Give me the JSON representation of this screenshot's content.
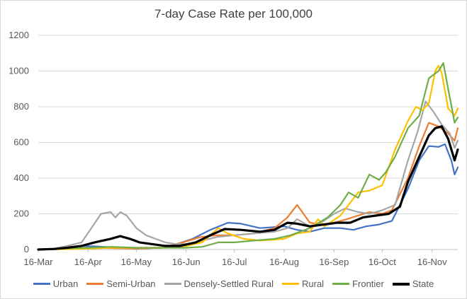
{
  "chart_data": {
    "type": "line",
    "title": "7-day Case Rate per 100,000",
    "xlabel": "",
    "ylabel": "",
    "ylim": [
      0,
      1200
    ],
    "yticks": [
      "0",
      "200",
      "400",
      "600",
      "800",
      "1000",
      "1200"
    ],
    "xlim": [
      "2020-03-16",
      "2020-12-02"
    ],
    "xticks": [
      "16-Mar",
      "16-Apr",
      "16-May",
      "16-Jun",
      "16-Jul",
      "16-Aug",
      "16-Sep",
      "16-Oct",
      "16-Nov"
    ],
    "xtick_dates": [
      "2020-03-16",
      "2020-04-16",
      "2020-05-16",
      "2020-06-16",
      "2020-07-16",
      "2020-08-16",
      "2020-09-16",
      "2020-10-16",
      "2020-11-16"
    ],
    "grid": "horizontal",
    "legend_position": "bottom",
    "series": [
      {
        "name": "Urban",
        "color": "#4472c4",
        "points": [
          [
            "2020-03-16",
            0
          ],
          [
            "2020-03-26",
            2
          ],
          [
            "2020-04-01",
            10
          ],
          [
            "2020-04-10",
            20
          ],
          [
            "2020-04-20",
            18
          ],
          [
            "2020-05-01",
            12
          ],
          [
            "2020-05-16",
            5
          ],
          [
            "2020-06-01",
            10
          ],
          [
            "2020-06-10",
            30
          ],
          [
            "2020-06-20",
            60
          ],
          [
            "2020-07-01",
            110
          ],
          [
            "2020-07-12",
            150
          ],
          [
            "2020-07-20",
            145
          ],
          [
            "2020-08-01",
            120
          ],
          [
            "2020-08-16",
            130
          ],
          [
            "2020-08-24",
            110
          ],
          [
            "2020-09-01",
            100
          ],
          [
            "2020-09-10",
            120
          ],
          [
            "2020-09-20",
            120
          ],
          [
            "2020-09-28",
            110
          ],
          [
            "2020-10-06",
            130
          ],
          [
            "2020-10-14",
            140
          ],
          [
            "2020-10-22",
            160
          ],
          [
            "2020-11-01",
            340
          ],
          [
            "2020-11-08",
            500
          ],
          [
            "2020-11-14",
            580
          ],
          [
            "2020-11-20",
            575
          ],
          [
            "2020-11-24",
            590
          ],
          [
            "2020-11-28",
            500
          ],
          [
            "2020-11-30",
            420
          ],
          [
            "2020-12-02",
            460
          ]
        ]
      },
      {
        "name": "Semi-Urban",
        "color": "#ed7d31",
        "points": [
          [
            "2020-03-16",
            0
          ],
          [
            "2020-03-26",
            1
          ],
          [
            "2020-04-01",
            5
          ],
          [
            "2020-04-10",
            8
          ],
          [
            "2020-04-20",
            10
          ],
          [
            "2020-05-01",
            8
          ],
          [
            "2020-05-16",
            5
          ],
          [
            "2020-06-01",
            10
          ],
          [
            "2020-06-14",
            40
          ],
          [
            "2020-06-25",
            70
          ],
          [
            "2020-07-05",
            80
          ],
          [
            "2020-07-16",
            80
          ],
          [
            "2020-07-28",
            90
          ],
          [
            "2020-08-10",
            120
          ],
          [
            "2020-08-18",
            180
          ],
          [
            "2020-08-24",
            250
          ],
          [
            "2020-08-28",
            200
          ],
          [
            "2020-09-01",
            150
          ],
          [
            "2020-09-08",
            140
          ],
          [
            "2020-09-16",
            150
          ],
          [
            "2020-09-24",
            170
          ],
          [
            "2020-10-01",
            190
          ],
          [
            "2020-10-08",
            210
          ],
          [
            "2020-10-16",
            200
          ],
          [
            "2020-10-22",
            220
          ],
          [
            "2020-11-01",
            400
          ],
          [
            "2020-11-08",
            580
          ],
          [
            "2020-11-14",
            710
          ],
          [
            "2020-11-20",
            690
          ],
          [
            "2020-11-26",
            650
          ],
          [
            "2020-11-30",
            610
          ],
          [
            "2020-12-02",
            680
          ]
        ]
      },
      {
        "name": "Densely-Settled Rural",
        "color": "#a5a5a5",
        "points": [
          [
            "2020-03-16",
            0
          ],
          [
            "2020-03-26",
            5
          ],
          [
            "2020-04-03",
            20
          ],
          [
            "2020-04-12",
            40
          ],
          [
            "2020-04-18",
            120
          ],
          [
            "2020-04-24",
            200
          ],
          [
            "2020-04-30",
            210
          ],
          [
            "2020-05-03",
            180
          ],
          [
            "2020-05-06",
            210
          ],
          [
            "2020-05-10",
            190
          ],
          [
            "2020-05-16",
            120
          ],
          [
            "2020-05-22",
            80
          ],
          [
            "2020-05-28",
            60
          ],
          [
            "2020-06-03",
            40
          ],
          [
            "2020-06-10",
            30
          ],
          [
            "2020-06-18",
            30
          ],
          [
            "2020-06-26",
            50
          ],
          [
            "2020-07-05",
            70
          ],
          [
            "2020-07-16",
            80
          ],
          [
            "2020-07-28",
            90
          ],
          [
            "2020-08-10",
            100
          ],
          [
            "2020-08-18",
            120
          ],
          [
            "2020-08-24",
            170
          ],
          [
            "2020-09-01",
            130
          ],
          [
            "2020-09-08",
            150
          ],
          [
            "2020-09-16",
            200
          ],
          [
            "2020-09-23",
            230
          ],
          [
            "2020-10-01",
            210
          ],
          [
            "2020-10-08",
            200
          ],
          [
            "2020-10-16",
            220
          ],
          [
            "2020-10-24",
            250
          ],
          [
            "2020-11-01",
            500
          ],
          [
            "2020-11-07",
            660
          ],
          [
            "2020-11-12",
            830
          ],
          [
            "2020-11-17",
            770
          ],
          [
            "2020-11-22",
            700
          ],
          [
            "2020-11-27",
            650
          ],
          [
            "2020-11-30",
            570
          ],
          [
            "2020-12-02",
            610
          ]
        ]
      },
      {
        "name": "Rural",
        "color": "#ffc000",
        "points": [
          [
            "2020-03-16",
            0
          ],
          [
            "2020-04-01",
            2
          ],
          [
            "2020-04-16",
            5
          ],
          [
            "2020-05-01",
            10
          ],
          [
            "2020-05-16",
            10
          ],
          [
            "2020-06-01",
            10
          ],
          [
            "2020-06-16",
            20
          ],
          [
            "2020-06-26",
            40
          ],
          [
            "2020-07-06",
            120
          ],
          [
            "2020-07-12",
            90
          ],
          [
            "2020-07-22",
            60
          ],
          [
            "2020-08-01",
            50
          ],
          [
            "2020-08-16",
            60
          ],
          [
            "2020-08-24",
            90
          ],
          [
            "2020-09-01",
            100
          ],
          [
            "2020-09-06",
            170
          ],
          [
            "2020-09-10",
            130
          ],
          [
            "2020-09-20",
            190
          ],
          [
            "2020-10-01",
            320
          ],
          [
            "2020-10-08",
            330
          ],
          [
            "2020-10-16",
            360
          ],
          [
            "2020-10-24",
            560
          ],
          [
            "2020-11-01",
            720
          ],
          [
            "2020-11-06",
            800
          ],
          [
            "2020-11-10",
            780
          ],
          [
            "2020-11-14",
            820
          ],
          [
            "2020-11-18",
            1000
          ],
          [
            "2020-11-20",
            1030
          ],
          [
            "2020-11-22",
            990
          ],
          [
            "2020-11-26",
            790
          ],
          [
            "2020-11-30",
            750
          ],
          [
            "2020-12-02",
            790
          ]
        ]
      },
      {
        "name": "Frontier",
        "color": "#70ad47",
        "points": [
          [
            "2020-03-16",
            0
          ],
          [
            "2020-04-01",
            5
          ],
          [
            "2020-04-16",
            10
          ],
          [
            "2020-05-01",
            15
          ],
          [
            "2020-05-16",
            10
          ],
          [
            "2020-06-01",
            10
          ],
          [
            "2020-06-16",
            10
          ],
          [
            "2020-06-26",
            15
          ],
          [
            "2020-07-06",
            40
          ],
          [
            "2020-07-16",
            40
          ],
          [
            "2020-07-28",
            50
          ],
          [
            "2020-08-10",
            60
          ],
          [
            "2020-08-20",
            80
          ],
          [
            "2020-09-01",
            120
          ],
          [
            "2020-09-12",
            180
          ],
          [
            "2020-09-20",
            250
          ],
          [
            "2020-09-25",
            320
          ],
          [
            "2020-10-01",
            290
          ],
          [
            "2020-10-08",
            420
          ],
          [
            "2020-10-14",
            390
          ],
          [
            "2020-10-18",
            430
          ],
          [
            "2020-10-24",
            520
          ],
          [
            "2020-11-01",
            680
          ],
          [
            "2020-11-08",
            750
          ],
          [
            "2020-11-14",
            960
          ],
          [
            "2020-11-20",
            1000
          ],
          [
            "2020-11-23",
            1045
          ],
          [
            "2020-11-26",
            900
          ],
          [
            "2020-11-29",
            760
          ],
          [
            "2020-11-30",
            710
          ],
          [
            "2020-12-02",
            740
          ]
        ]
      },
      {
        "name": "State",
        "color": "#000000",
        "points": [
          [
            "2020-03-16",
            0
          ],
          [
            "2020-03-26",
            3
          ],
          [
            "2020-04-03",
            10
          ],
          [
            "2020-04-12",
            20
          ],
          [
            "2020-04-20",
            40
          ],
          [
            "2020-04-30",
            60
          ],
          [
            "2020-05-06",
            75
          ],
          [
            "2020-05-12",
            60
          ],
          [
            "2020-05-18",
            40
          ],
          [
            "2020-05-26",
            30
          ],
          [
            "2020-06-03",
            20
          ],
          [
            "2020-06-12",
            20
          ],
          [
            "2020-06-22",
            40
          ],
          [
            "2020-07-01",
            80
          ],
          [
            "2020-07-10",
            115
          ],
          [
            "2020-07-20",
            110
          ],
          [
            "2020-08-01",
            100
          ],
          [
            "2020-08-10",
            110
          ],
          [
            "2020-08-18",
            150
          ],
          [
            "2020-08-24",
            145
          ],
          [
            "2020-09-01",
            130
          ],
          [
            "2020-09-10",
            140
          ],
          [
            "2020-09-18",
            150
          ],
          [
            "2020-09-26",
            150
          ],
          [
            "2020-10-04",
            180
          ],
          [
            "2020-10-12",
            190
          ],
          [
            "2020-10-20",
            200
          ],
          [
            "2020-10-27",
            240
          ],
          [
            "2020-11-01",
            380
          ],
          [
            "2020-11-08",
            520
          ],
          [
            "2020-11-14",
            640
          ],
          [
            "2020-11-18",
            680
          ],
          [
            "2020-11-22",
            690
          ],
          [
            "2020-11-26",
            620
          ],
          [
            "2020-11-30",
            500
          ],
          [
            "2020-12-02",
            560
          ]
        ]
      }
    ]
  }
}
